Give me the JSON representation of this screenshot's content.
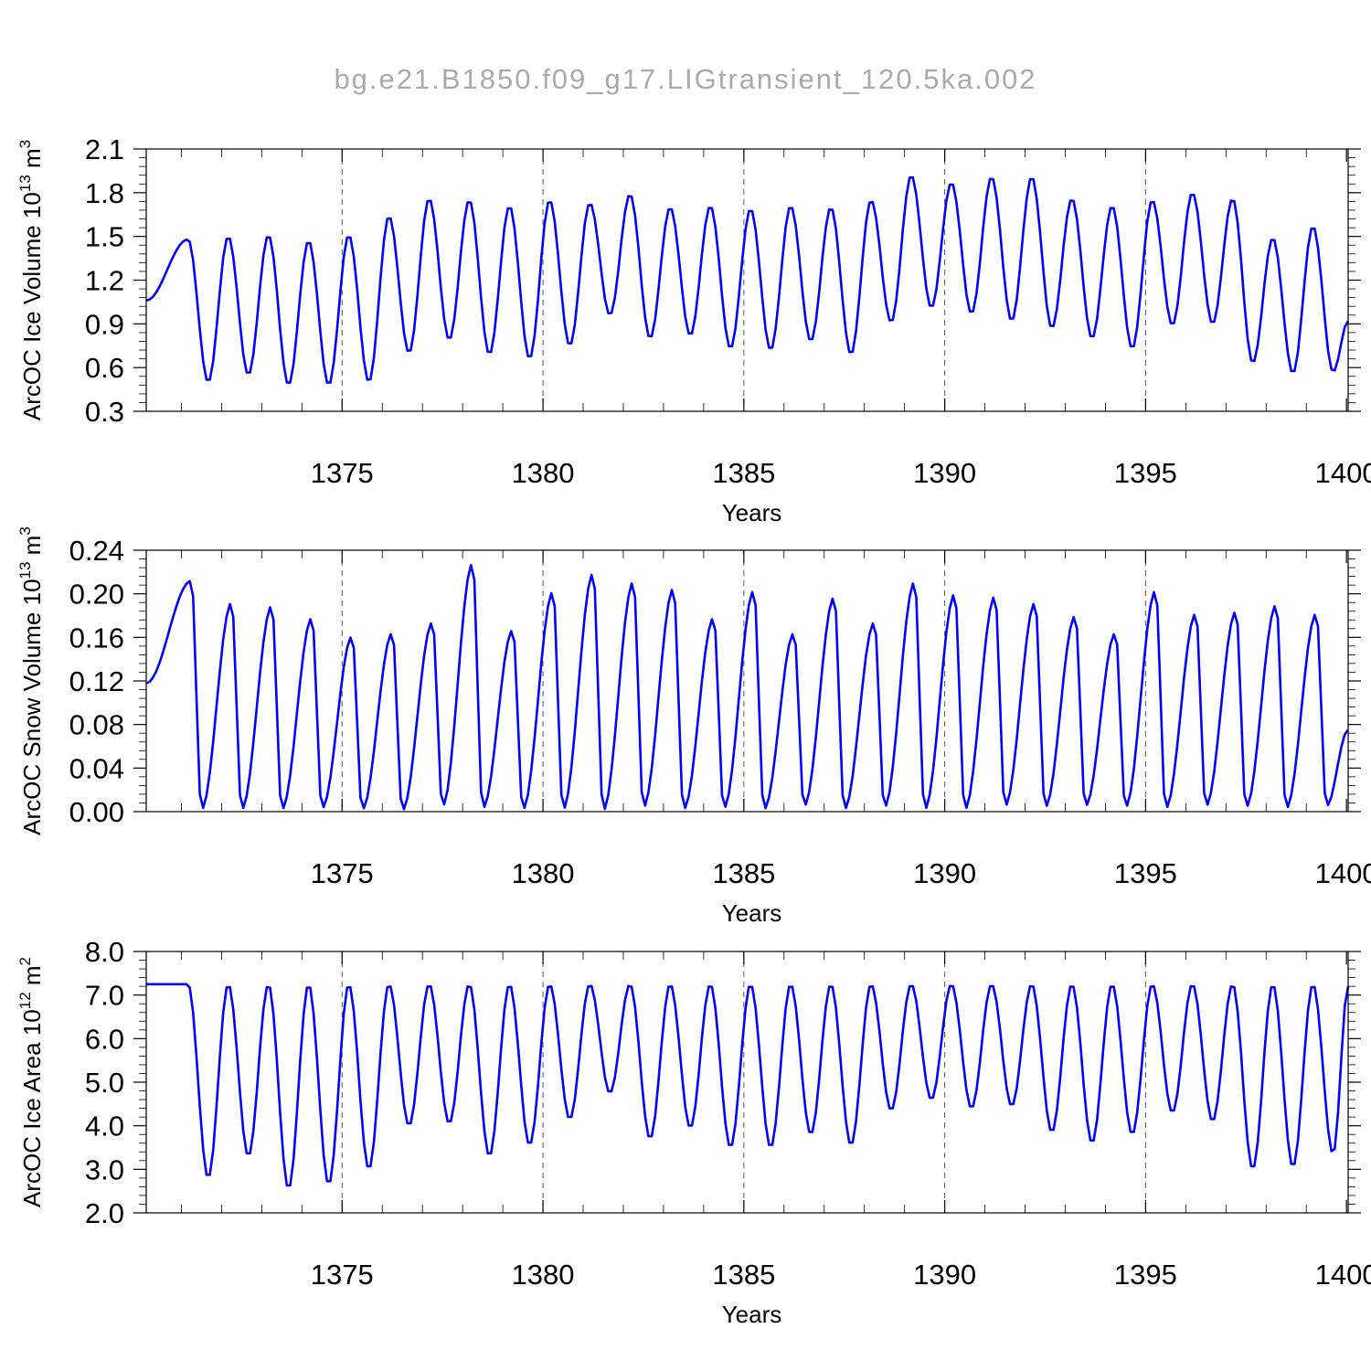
{
  "title": "bg.e21.B1850.f09_g17.LIGtransient_120.5ka.002",
  "line_color": "#0000ff",
  "chart_data": [
    {
      "type": "line",
      "name": "panel-ice-volume",
      "ylabel": "ArcOC Ice Volume 10",
      "ylabel_exp": "13",
      "ylabel_unit": " m",
      "ylabel_unit_exp": "3",
      "xlabel": "Years",
      "xlim": [
        1370.125,
        1400.0417
      ],
      "ylim": [
        0.3,
        2.1
      ],
      "x_ticks": [
        1375,
        1380,
        1385,
        1390,
        1395,
        1400
      ],
      "y_ticks": [
        0.3,
        0.6,
        0.9,
        1.2,
        1.5,
        1.8,
        2.1
      ],
      "y_tick_labels": [
        "0.3",
        "0.6",
        "0.9",
        "1.2",
        "1.5",
        "1.8",
        "2.1"
      ],
      "grid_x": [
        1375,
        1380,
        1385,
        1390,
        1395
      ],
      "x_start": 1370.125,
      "x_step": 0.08333333,
      "max": [
        1.48,
        1.5,
        1.51,
        1.47,
        1.51,
        1.64,
        1.76,
        1.75,
        1.71,
        1.75,
        1.73,
        1.79,
        1.7,
        1.71,
        1.69,
        1.71,
        1.7,
        1.75,
        1.92,
        1.87,
        1.91,
        1.91,
        1.76,
        1.71,
        1.75,
        1.8,
        1.76,
        1.49,
        1.57,
        1.51
      ],
      "min": [
        0.5,
        0.55,
        0.48,
        0.48,
        0.5,
        0.7,
        0.79,
        0.69,
        0.66,
        0.75,
        0.96,
        0.8,
        0.82,
        0.73,
        0.72,
        0.78,
        0.69,
        0.91,
        1.01,
        0.97,
        0.92,
        0.87,
        0.8,
        0.73,
        0.89,
        0.9,
        0.63,
        0.56,
        0.57,
        0.54
      ],
      "min_month": 9,
      "max_month": 3,
      "start_value": 1.06,
      "end_value": 0.92
    },
    {
      "type": "line",
      "name": "panel-snow-volume",
      "ylabel": "ArcOC Snow Volume 10",
      "ylabel_exp": "13",
      "ylabel_unit": " m",
      "ylabel_unit_exp": "3",
      "xlabel": "Years",
      "xlim": [
        1370.125,
        1400.0417
      ],
      "ylim": [
        0.0,
        0.24
      ],
      "x_ticks": [
        1375,
        1380,
        1385,
        1390,
        1395,
        1400
      ],
      "y_ticks": [
        0.0,
        0.04,
        0.08,
        0.12,
        0.16,
        0.2,
        0.24
      ],
      "y_tick_labels": [
        "0.00",
        "0.04",
        "0.08",
        "0.12",
        "0.16",
        "0.20",
        "0.24"
      ],
      "grid_x": [
        1375,
        1380,
        1385,
        1390,
        1395
      ],
      "x_start": 1370.125,
      "x_step": 0.08333333,
      "max": [
        0.212,
        0.192,
        0.189,
        0.178,
        0.161,
        0.164,
        0.174,
        0.228,
        0.167,
        0.202,
        0.219,
        0.211,
        0.205,
        0.178,
        0.203,
        0.164,
        0.197,
        0.174,
        0.211,
        0.2,
        0.198,
        0.192,
        0.18,
        0.164,
        0.203,
        0.182,
        0.184,
        0.19,
        0.182,
        0.2
      ],
      "min": [
        0.002,
        0.002,
        0.002,
        0.003,
        0.002,
        0.001,
        0.005,
        0.003,
        0.002,
        0.002,
        0.001,
        0.004,
        0.002,
        0.003,
        0.002,
        0.005,
        0.002,
        0.004,
        0.002,
        0.002,
        0.005,
        0.004,
        0.005,
        0.004,
        0.003,
        0.005,
        0.004,
        0.003,
        0.005,
        0.003
      ],
      "min_month": 7,
      "max_month": 4,
      "start_value": 0.118,
      "end_value": 0.075
    },
    {
      "type": "line",
      "name": "panel-ice-area",
      "ylabel": "ArcOC Ice Area 10",
      "ylabel_exp": "12",
      "ylabel_unit": " m",
      "ylabel_unit_exp": "2",
      "xlabel": "Years",
      "xlim": [
        1370.125,
        1400.0417
      ],
      "ylim": [
        2.0,
        8.0
      ],
      "x_ticks": [
        1375,
        1380,
        1385,
        1390,
        1395,
        1400
      ],
      "y_ticks": [
        2.0,
        3.0,
        4.0,
        5.0,
        6.0,
        7.0,
        8.0
      ],
      "y_tick_labels": [
        "2.0",
        "3.0",
        "4.0",
        "5.0",
        "6.0",
        "7.0",
        "8.0"
      ],
      "grid_x": [
        1375,
        1380,
        1385,
        1390,
        1395
      ],
      "x_start": 1370.125,
      "x_step": 0.08333333,
      "max": [
        7.25,
        7.25,
        7.25,
        7.25,
        7.25,
        7.25,
        7.25,
        7.25,
        7.25,
        7.25,
        7.25,
        7.25,
        7.25,
        7.25,
        7.25,
        7.25,
        7.25,
        7.25,
        7.25,
        7.25,
        7.25,
        7.25,
        7.25,
        7.25,
        7.25,
        7.25,
        7.25,
        7.25,
        7.25,
        7.25
      ],
      "min": [
        2.8,
        3.3,
        2.55,
        2.65,
        3.0,
        4.0,
        4.05,
        3.3,
        3.55,
        4.15,
        4.75,
        3.7,
        3.95,
        3.5,
        3.5,
        3.8,
        3.55,
        4.35,
        4.6,
        4.4,
        4.45,
        3.85,
        3.6,
        3.8,
        4.3,
        4.1,
        3.0,
        3.05,
        3.35,
        3.25
      ],
      "min_month": 9,
      "max_month": 3,
      "start_value": 7.25,
      "end_value": 7.2
    }
  ]
}
